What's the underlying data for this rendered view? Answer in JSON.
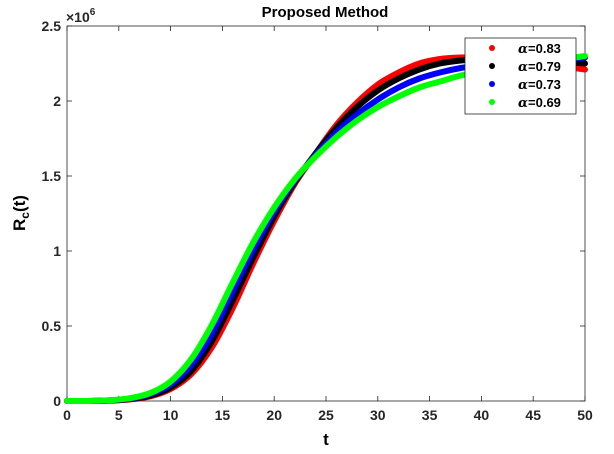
{
  "chart_data": {
    "type": "line",
    "title": "Proposed Method",
    "xlabel": "t",
    "ylabel_main": "R",
    "ylabel_sub": "c",
    "ylabel_tail": "(t)",
    "xlim": [
      0,
      50
    ],
    "ylim": [
      0,
      2.5
    ],
    "y_multiplier_base": "×10",
    "y_multiplier_exp": "6",
    "grid": false,
    "legend_position": "top-right",
    "x_ticks": [
      0,
      5,
      10,
      15,
      20,
      25,
      30,
      35,
      40,
      45,
      50
    ],
    "x_tick_labels": [
      "0",
      "5",
      "10",
      "15",
      "20",
      "25",
      "30",
      "35",
      "40",
      "45",
      "50"
    ],
    "y_ticks": [
      0,
      0.5,
      1,
      1.5,
      2,
      2.5
    ],
    "y_tick_labels": [
      "0",
      "0.5",
      "1",
      "1.5",
      "2",
      "2.5"
    ],
    "x": [
      0,
      2,
      4,
      6,
      8,
      10,
      12,
      14,
      16,
      18,
      20,
      22,
      24,
      26,
      28,
      30,
      32,
      34,
      36,
      38,
      40,
      42,
      44,
      46,
      48,
      50
    ],
    "series": [
      {
        "name": "α=0.83",
        "alpha_symbol": "α",
        "alpha_value": "=0.83",
        "color": "#ff0000",
        "values": [
          0,
          0,
          0.002,
          0.01,
          0.03,
          0.08,
          0.18,
          0.36,
          0.62,
          0.92,
          1.2,
          1.45,
          1.65,
          1.84,
          1.99,
          2.11,
          2.19,
          2.25,
          2.28,
          2.29,
          2.29,
          2.28,
          2.27,
          2.25,
          2.23,
          2.21
        ]
      },
      {
        "name": "α=0.79",
        "alpha_symbol": "α",
        "alpha_value": "=0.79",
        "color": "#000000",
        "values": [
          0,
          0,
          0.003,
          0.012,
          0.035,
          0.09,
          0.2,
          0.4,
          0.67,
          0.96,
          1.23,
          1.46,
          1.65,
          1.82,
          1.96,
          2.07,
          2.15,
          2.21,
          2.25,
          2.27,
          2.28,
          2.28,
          2.28,
          2.27,
          2.26,
          2.25
        ]
      },
      {
        "name": "α=0.73",
        "alpha_symbol": "α",
        "alpha_value": "=0.73",
        "color": "#0000ff",
        "values": [
          0,
          0,
          0.004,
          0.015,
          0.045,
          0.11,
          0.24,
          0.45,
          0.73,
          1.01,
          1.26,
          1.47,
          1.64,
          1.79,
          1.91,
          2.01,
          2.09,
          2.15,
          2.19,
          2.22,
          2.24,
          2.26,
          2.27,
          2.28,
          2.28,
          2.29
        ]
      },
      {
        "name": "α=0.69",
        "alpha_symbol": "α",
        "alpha_value": "=0.69",
        "color": "#00ff00",
        "values": [
          0,
          0,
          0.005,
          0.018,
          0.052,
          0.13,
          0.28,
          0.51,
          0.79,
          1.06,
          1.29,
          1.48,
          1.63,
          1.76,
          1.87,
          1.96,
          2.03,
          2.09,
          2.13,
          2.17,
          2.2,
          2.22,
          2.24,
          2.26,
          2.28,
          2.3
        ]
      }
    ]
  }
}
